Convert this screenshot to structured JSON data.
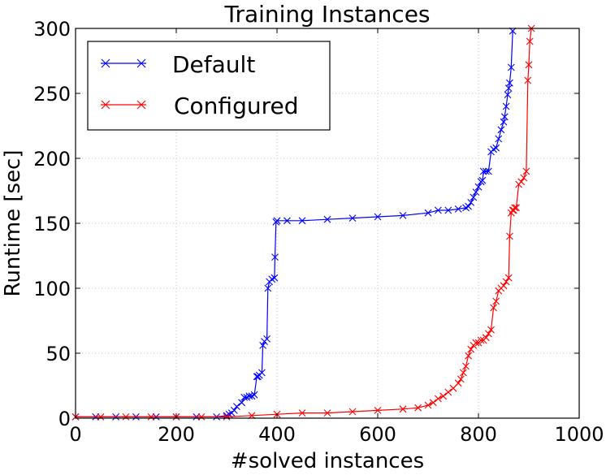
{
  "chart_data": {
    "type": "line",
    "title": "Training Instances",
    "xlabel": "#solved instances",
    "ylabel": "Runtime [sec]",
    "xlim": [
      0,
      1000
    ],
    "ylim": [
      0,
      300
    ],
    "xticks": [
      0,
      200,
      400,
      600,
      800,
      1000
    ],
    "yticks": [
      0,
      50,
      100,
      150,
      200,
      250,
      300
    ],
    "grid": true,
    "legend_position": "top-left",
    "marker": "x",
    "series": [
      {
        "name": "Default",
        "color": "#0000ff",
        "x": [
          0,
          40,
          80,
          120,
          160,
          200,
          240,
          280,
          300,
          305,
          310,
          315,
          320,
          330,
          335,
          340,
          345,
          350,
          355,
          360,
          362,
          365,
          370,
          372,
          375,
          380,
          382,
          385,
          390,
          395,
          396,
          398,
          400,
          420,
          450,
          500,
          550,
          600,
          650,
          700,
          720,
          740,
          760,
          775,
          780,
          785,
          790,
          795,
          800,
          805,
          808,
          810,
          815,
          820,
          825,
          830,
          835,
          840,
          845,
          850,
          852,
          855,
          858,
          860,
          862,
          865,
          868
        ],
        "values": [
          1,
          1,
          1,
          1,
          1,
          1,
          1,
          1,
          2,
          3,
          4,
          6,
          9,
          12,
          16,
          16,
          17,
          17,
          18,
          32,
          32,
          33,
          35,
          56,
          59,
          61,
          100,
          105,
          107,
          108,
          124,
          151,
          152,
          152,
          152,
          153,
          154,
          155,
          156,
          158,
          160,
          160,
          161,
          162,
          163,
          166,
          170,
          174,
          178,
          182,
          183,
          190,
          190,
          190,
          205,
          207,
          208,
          215,
          222,
          228,
          232,
          240,
          249,
          254,
          258,
          270,
          298
        ]
      },
      {
        "name": "Configured",
        "color": "#ff0000",
        "x": [
          0,
          50,
          100,
          150,
          200,
          250,
          300,
          350,
          400,
          450,
          500,
          550,
          600,
          650,
          680,
          700,
          710,
          720,
          730,
          740,
          750,
          760,
          765,
          770,
          775,
          780,
          785,
          790,
          795,
          800,
          805,
          810,
          815,
          820,
          825,
          830,
          835,
          840,
          845,
          850,
          855,
          860,
          862,
          865,
          868,
          870,
          872,
          875,
          880,
          885,
          890,
          895,
          898,
          900,
          902,
          905
        ],
        "values": [
          1,
          1,
          1,
          1,
          1,
          1,
          1,
          2,
          3,
          4,
          4,
          5,
          6,
          7,
          8,
          10,
          12,
          15,
          17,
          20,
          23,
          27,
          30,
          35,
          40,
          48,
          53,
          56,
          58,
          58,
          60,
          60,
          62,
          65,
          68,
          85,
          90,
          98,
          100,
          102,
          105,
          108,
          140,
          158,
          160,
          160,
          162,
          162,
          180,
          182,
          185,
          190,
          260,
          272,
          290,
          300
        ]
      }
    ]
  }
}
